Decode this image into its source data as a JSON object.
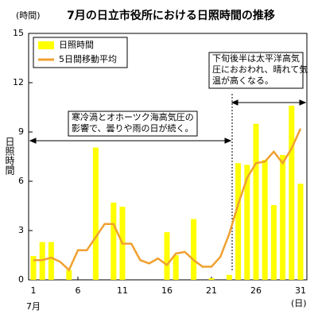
{
  "chart_data": {
    "type": "bar_line",
    "title": "7月の日立市役所における日照時間の推移",
    "y_unit": "(時間)",
    "y_label": "日照時間",
    "x_label": "7月",
    "x_unit": "(日)",
    "categories": [
      "1",
      null,
      null,
      null,
      null,
      "6",
      null,
      null,
      null,
      null,
      "11",
      null,
      null,
      null,
      null,
      "16",
      null,
      null,
      null,
      null,
      "21",
      null,
      null,
      null,
      null,
      "26",
      null,
      null,
      null,
      null,
      "31"
    ],
    "series": [
      {
        "name": "日照時間",
        "kind": "bar",
        "color": "#ffff00",
        "values": [
          1.45,
          2.3,
          2.3,
          0,
          0.6,
          0,
          0,
          8.05,
          0,
          4.7,
          4.45,
          0,
          0,
          0,
          0,
          2.9,
          1.5,
          0,
          3.7,
          0,
          0.1,
          0,
          0.3,
          7.1,
          7.0,
          9.5,
          7.3,
          4.55,
          7.6,
          10.6,
          5.85
        ]
      },
      {
        "name": "5日間移動平均",
        "kind": "line",
        "color": "#f0a030",
        "values": [
          1.2,
          1.2,
          1.35,
          1.1,
          0.6,
          1.8,
          1.8,
          2.6,
          3.4,
          3.4,
          2.2,
          2.2,
          1.2,
          1.0,
          1.3,
          0.9,
          1.6,
          1.7,
          1.2,
          0.8,
          0.8,
          1.4,
          2.8,
          4.6,
          6.2,
          7.1,
          7.2,
          7.8,
          7.1,
          8.0,
          9.2
        ]
      }
    ],
    "ylim": [
      0,
      15
    ],
    "yticks": [
      0,
      3,
      6,
      9,
      12,
      15
    ],
    "grid": false,
    "legend": "top-left",
    "annotations": [
      {
        "lines": [
          "寒冷渦とオホーツク海高気圧の",
          "影響で、曇りや雨の日が続く。"
        ]
      },
      {
        "lines": [
          "下旬後半は太平洋高気",
          "圧におおわれ、晴れて気",
          "温が高くなる。"
        ]
      }
    ]
  }
}
